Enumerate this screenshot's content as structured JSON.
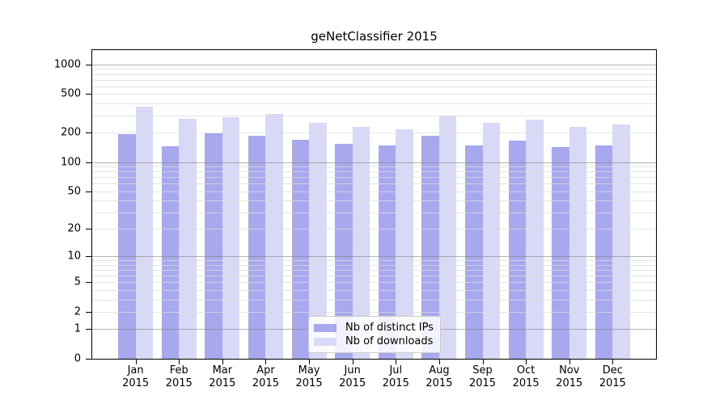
{
  "title": "geNetClassifier 2015",
  "legend": {
    "items": [
      {
        "label": "Nb of distinct IPs",
        "color": "#a8a8ee"
      },
      {
        "label": "Nb of downloads",
        "color": "#d8d8f7"
      }
    ]
  },
  "chart_data": {
    "type": "bar",
    "title": "geNetClassifier 2015",
    "categories": [
      "Jan",
      "Feb",
      "Mar",
      "Apr",
      "May",
      "Jun",
      "Jul",
      "Aug",
      "Sep",
      "Oct",
      "Nov",
      "Dec"
    ],
    "category_year": "2015",
    "series": [
      {
        "name": "Nb of distinct IPs",
        "color": "#a8a8ee",
        "values": [
          192,
          146,
          198,
          185,
          171,
          155,
          147,
          187,
          149,
          165,
          144,
          147
        ]
      },
      {
        "name": "Nb of downloads",
        "color": "#d8d8f7",
        "values": [
          370,
          276,
          288,
          313,
          252,
          228,
          218,
          298,
          252,
          275,
          232,
          244
        ]
      }
    ],
    "yscale": "log1p",
    "yticks": [
      0,
      1,
      2,
      5,
      10,
      20,
      50,
      100,
      200,
      500,
      1000
    ],
    "ylim": [
      0,
      1400
    ],
    "grid": {
      "major": [
        1,
        10,
        100,
        1000
      ],
      "minor_decades": [
        1,
        10,
        100
      ],
      "major_color": "#b4b4b4",
      "minor_color": "#e5e5e5"
    },
    "legend_position": "lower-center",
    "bar_colors": {
      "distinct_ips": "#a8a8ee",
      "downloads": "#d8d8f7"
    }
  }
}
